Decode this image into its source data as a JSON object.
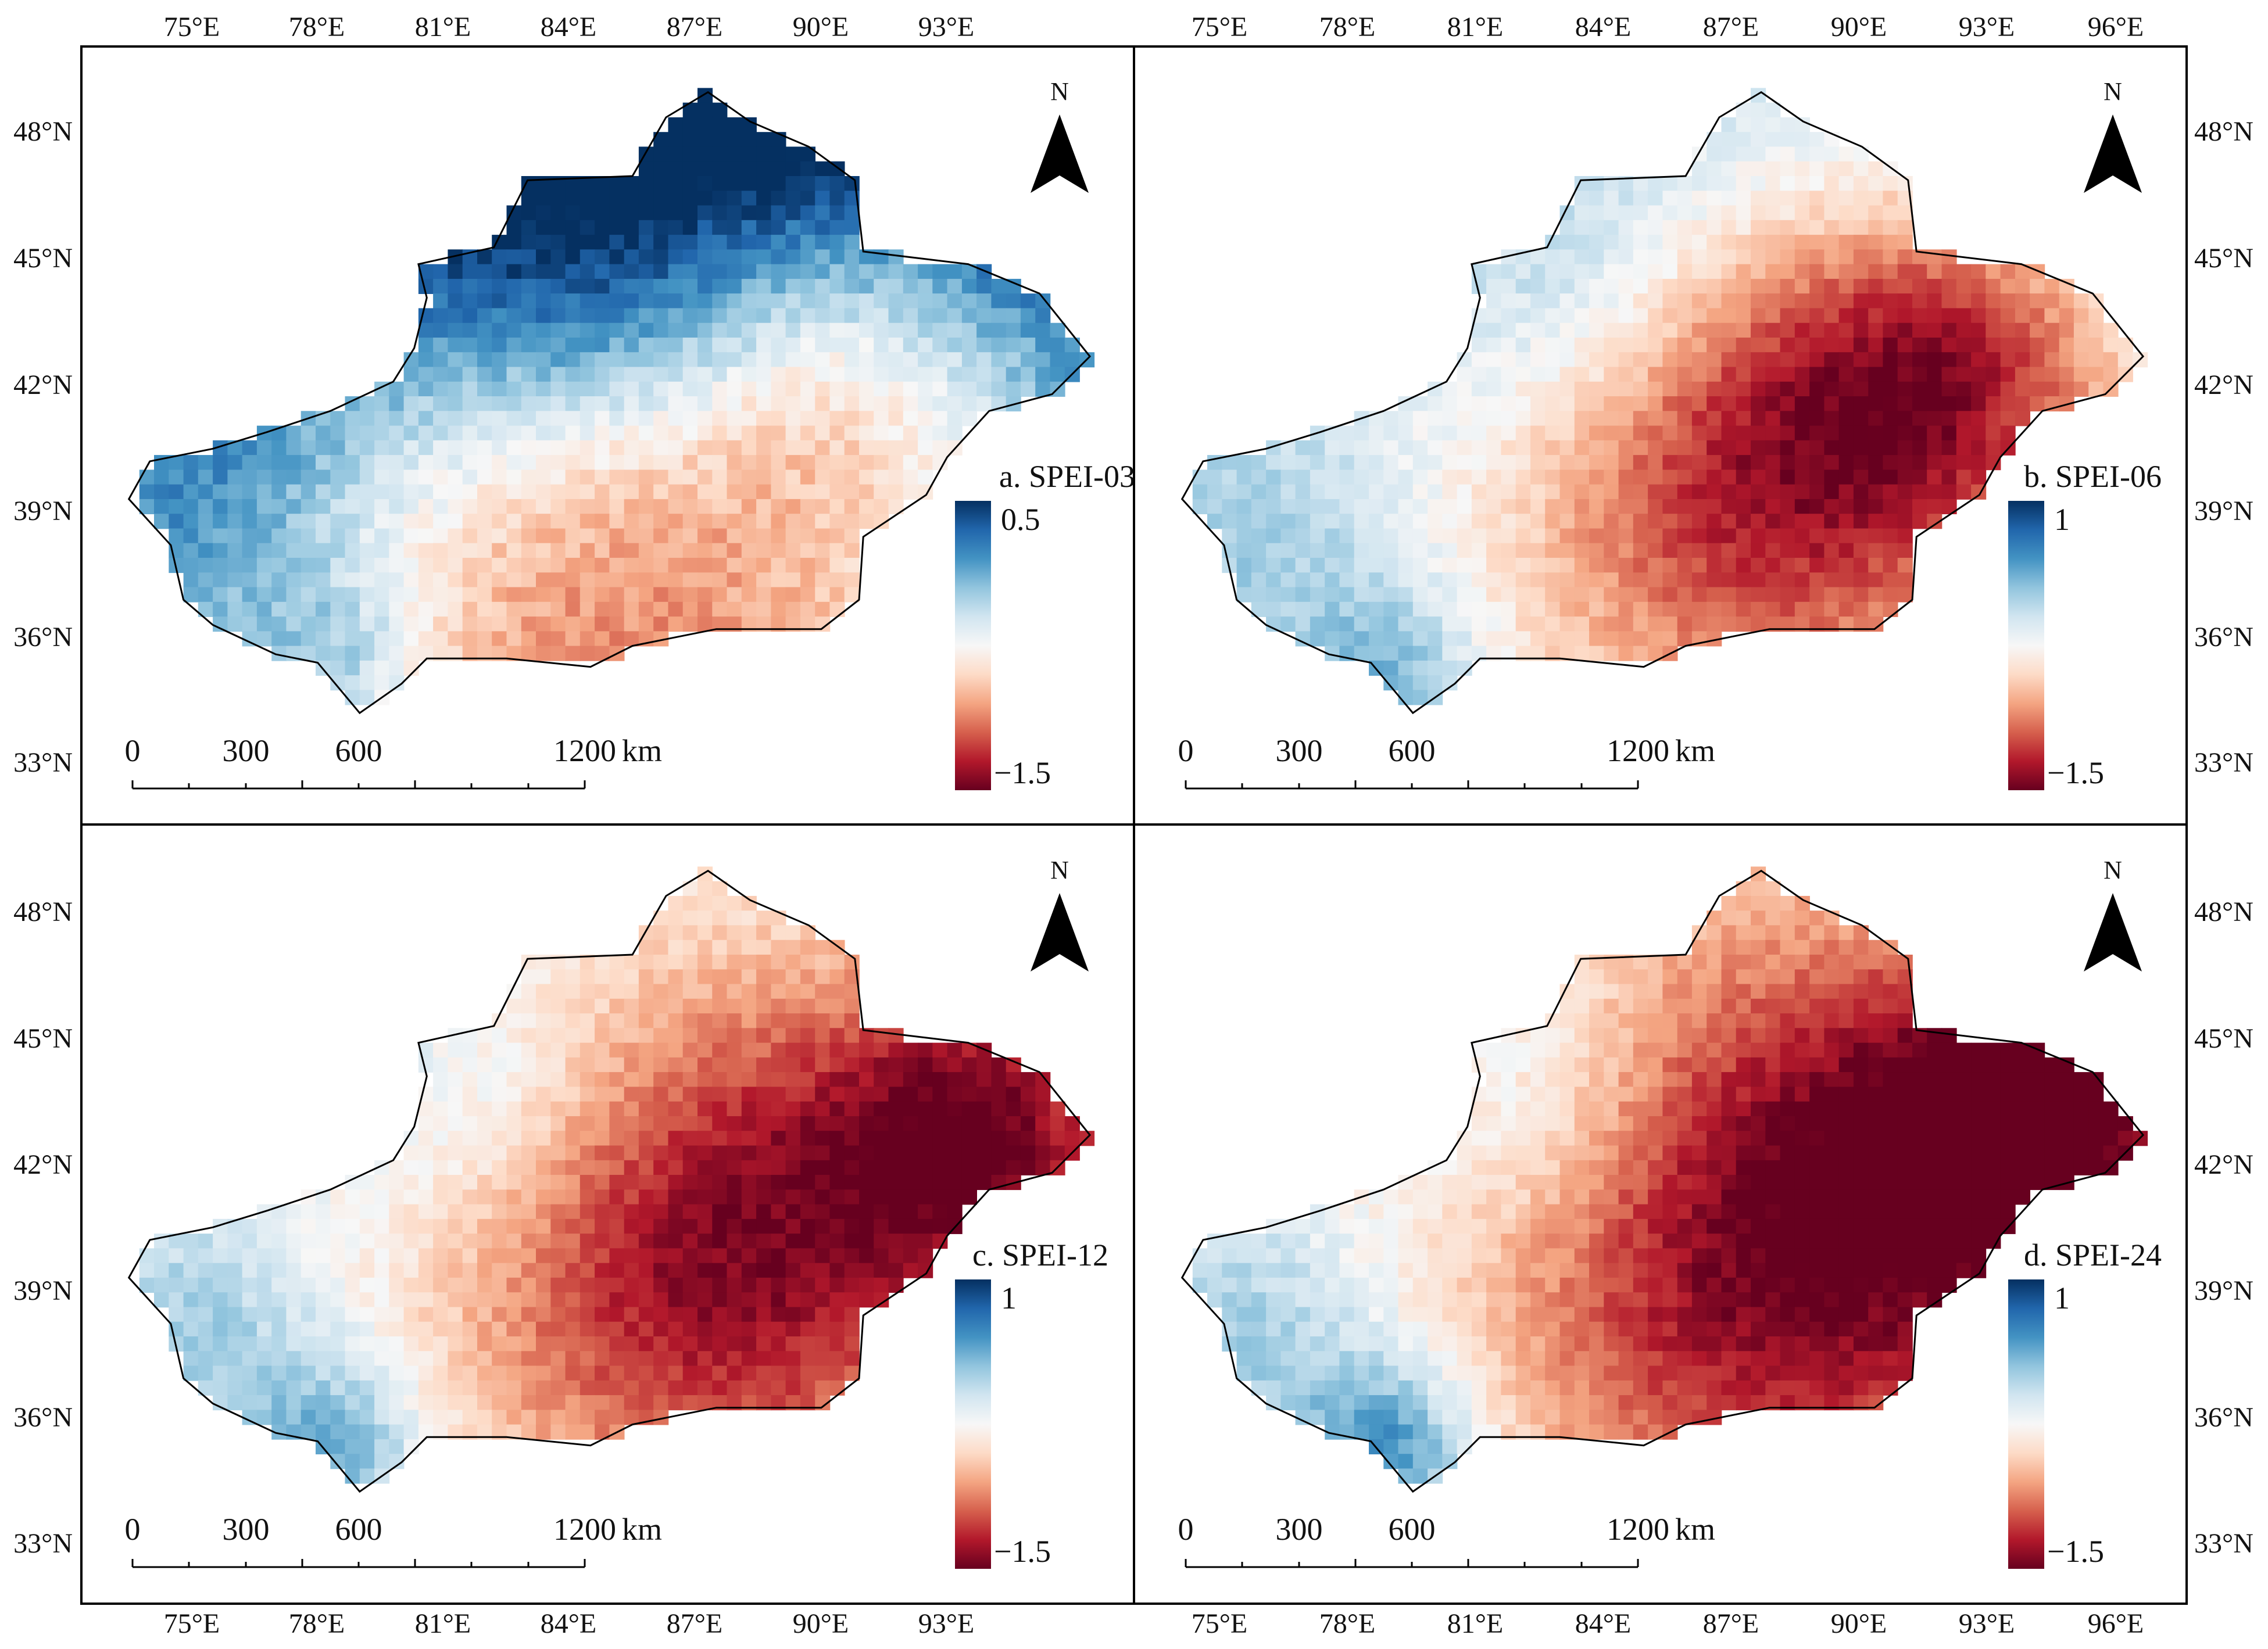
{
  "figure": {
    "top_longitude_labels": [
      "75°E",
      "78°E",
      "81°E",
      "84°E",
      "87°E",
      "90°E",
      "93°E",
      "96°E"
    ],
    "bottom_longitude_labels": [
      "75°E",
      "78°E",
      "81°E",
      "84°E",
      "87°E",
      "90°E",
      "93°E",
      "96°E"
    ],
    "left_latitude_labels_top": [
      "48°N",
      "45°N",
      "42°N",
      "39°N",
      "36°N",
      "33°N"
    ],
    "left_latitude_labels_bottom": [
      "48°N",
      "45°N",
      "42°N",
      "39°N",
      "36°N",
      "33°N"
    ],
    "right_latitude_labels_top": [
      "48°N",
      "45°N",
      "42°N",
      "39°N",
      "36°N",
      "33°N"
    ],
    "right_latitude_labels_bottom": [
      "48°N",
      "45°N",
      "42°N",
      "39°N",
      "36°N",
      "33°N"
    ]
  },
  "colormap": {
    "stops": [
      "#67001f",
      "#b2182b",
      "#d6604d",
      "#f4a582",
      "#fddbc7",
      "#f7f7f7",
      "#d1e5f0",
      "#92c5de",
      "#4393c3",
      "#2166ac",
      "#053061"
    ]
  },
  "north_arrow_label": "N",
  "scale_bar": {
    "labels": [
      "0",
      "300",
      "600",
      "1200"
    ],
    "unit": "km"
  },
  "panels": [
    {
      "id": "a",
      "title": "a. SPEI-03",
      "colorbar": {
        "max_label": "0.5",
        "min_label": "−1.5",
        "max": 0.5,
        "min": -1.5
      },
      "field": {
        "base": 0.1,
        "lat_gradient": 0.1,
        "anomalies": [
          {
            "lon": 85.0,
            "lat": 39.5,
            "value": -0.75,
            "spread": 4.5
          },
          {
            "lon": 91.0,
            "lat": 42.3,
            "value": -0.55,
            "spread": 3.2
          },
          {
            "lon": 85.0,
            "lat": 43.8,
            "value": 0.35,
            "spread": 3.0
          },
          {
            "lon": 75.0,
            "lat": 38.0,
            "value": 0.3,
            "spread": 2.5
          },
          {
            "lon": 78.5,
            "lat": 35.3,
            "value": 0.4,
            "spread": 1.5
          }
        ]
      }
    },
    {
      "id": "b",
      "title": "b. SPEI-06",
      "colorbar": {
        "max_label": "1",
        "min_label": "−1.5",
        "max": 1,
        "min": -1.5
      },
      "field": {
        "base": -0.1,
        "lat_gradient": 0.02,
        "anomalies": [
          {
            "lon": 87.0,
            "lat": 40.0,
            "value": -1.1,
            "spread": 4.0
          },
          {
            "lon": 92.0,
            "lat": 42.5,
            "value": -0.9,
            "spread": 3.0
          },
          {
            "lon": 75.0,
            "lat": 38.0,
            "value": 0.35,
            "spread": 2.5
          },
          {
            "lon": 83.0,
            "lat": 44.0,
            "value": 0.3,
            "spread": 2.5
          },
          {
            "lon": 78.5,
            "lat": 35.3,
            "value": 0.5,
            "spread": 1.5
          }
        ]
      }
    },
    {
      "id": "c",
      "title": "c. SPEI-12",
      "colorbar": {
        "max_label": "1",
        "min_label": "−1.5",
        "max": 1,
        "min": -1.5
      },
      "field": {
        "base": -0.25,
        "lat_gradient": 0.0,
        "anomalies": [
          {
            "lon": 87.5,
            "lat": 40.0,
            "value": -1.15,
            "spread": 4.5
          },
          {
            "lon": 94.0,
            "lat": 43.0,
            "value": -1.0,
            "spread": 2.8
          },
          {
            "lon": 75.0,
            "lat": 38.0,
            "value": 0.45,
            "spread": 2.5
          },
          {
            "lon": 82.0,
            "lat": 43.5,
            "value": 0.35,
            "spread": 2.5
          },
          {
            "lon": 78.5,
            "lat": 35.3,
            "value": 0.6,
            "spread": 1.5
          }
        ]
      }
    },
    {
      "id": "d",
      "title": "d. SPEI-24",
      "colorbar": {
        "max_label": "1",
        "min_label": "−1.5",
        "max": 1,
        "min": -1.5
      },
      "field": {
        "base": -0.3,
        "lat_gradient": 0.0,
        "anomalies": [
          {
            "lon": 88.0,
            "lat": 40.5,
            "value": -1.25,
            "spread": 5.0
          },
          {
            "lon": 94.0,
            "lat": 43.2,
            "value": -1.1,
            "spread": 2.8
          },
          {
            "lon": 75.0,
            "lat": 38.0,
            "value": 0.5,
            "spread": 2.5
          },
          {
            "lon": 82.0,
            "lat": 43.5,
            "value": 0.4,
            "spread": 2.5
          },
          {
            "lon": 78.5,
            "lat": 35.3,
            "value": 0.8,
            "spread": 1.5
          }
        ]
      }
    }
  ],
  "boundary": {
    "lonlat": [
      [
        73.5,
        39.4
      ],
      [
        74.0,
        40.3
      ],
      [
        75.5,
        40.6
      ],
      [
        76.8,
        41.0
      ],
      [
        78.3,
        41.5
      ],
      [
        79.8,
        42.2
      ],
      [
        80.3,
        43.0
      ],
      [
        80.6,
        44.2
      ],
      [
        80.4,
        45.0
      ],
      [
        82.2,
        45.4
      ],
      [
        83.0,
        47.0
      ],
      [
        85.5,
        47.1
      ],
      [
        86.3,
        48.5
      ],
      [
        87.3,
        49.1
      ],
      [
        88.3,
        48.4
      ],
      [
        89.7,
        47.8
      ],
      [
        90.8,
        47.0
      ],
      [
        91.0,
        45.3
      ],
      [
        93.5,
        45.0
      ],
      [
        95.2,
        44.3
      ],
      [
        96.4,
        42.8
      ],
      [
        95.5,
        41.9
      ],
      [
        94.0,
        41.5
      ],
      [
        93.0,
        40.4
      ],
      [
        92.5,
        39.5
      ],
      [
        91.0,
        38.5
      ],
      [
        90.9,
        37.0
      ],
      [
        90.0,
        36.3
      ],
      [
        87.5,
        36.3
      ],
      [
        85.5,
        35.9
      ],
      [
        84.5,
        35.4
      ],
      [
        82.5,
        35.6
      ],
      [
        80.6,
        35.6
      ],
      [
        80.0,
        35.0
      ],
      [
        79.0,
        34.3
      ],
      [
        78.0,
        35.5
      ],
      [
        77.0,
        35.7
      ],
      [
        75.5,
        36.4
      ],
      [
        74.8,
        37.0
      ],
      [
        74.5,
        38.3
      ],
      [
        73.5,
        39.4
      ]
    ]
  }
}
